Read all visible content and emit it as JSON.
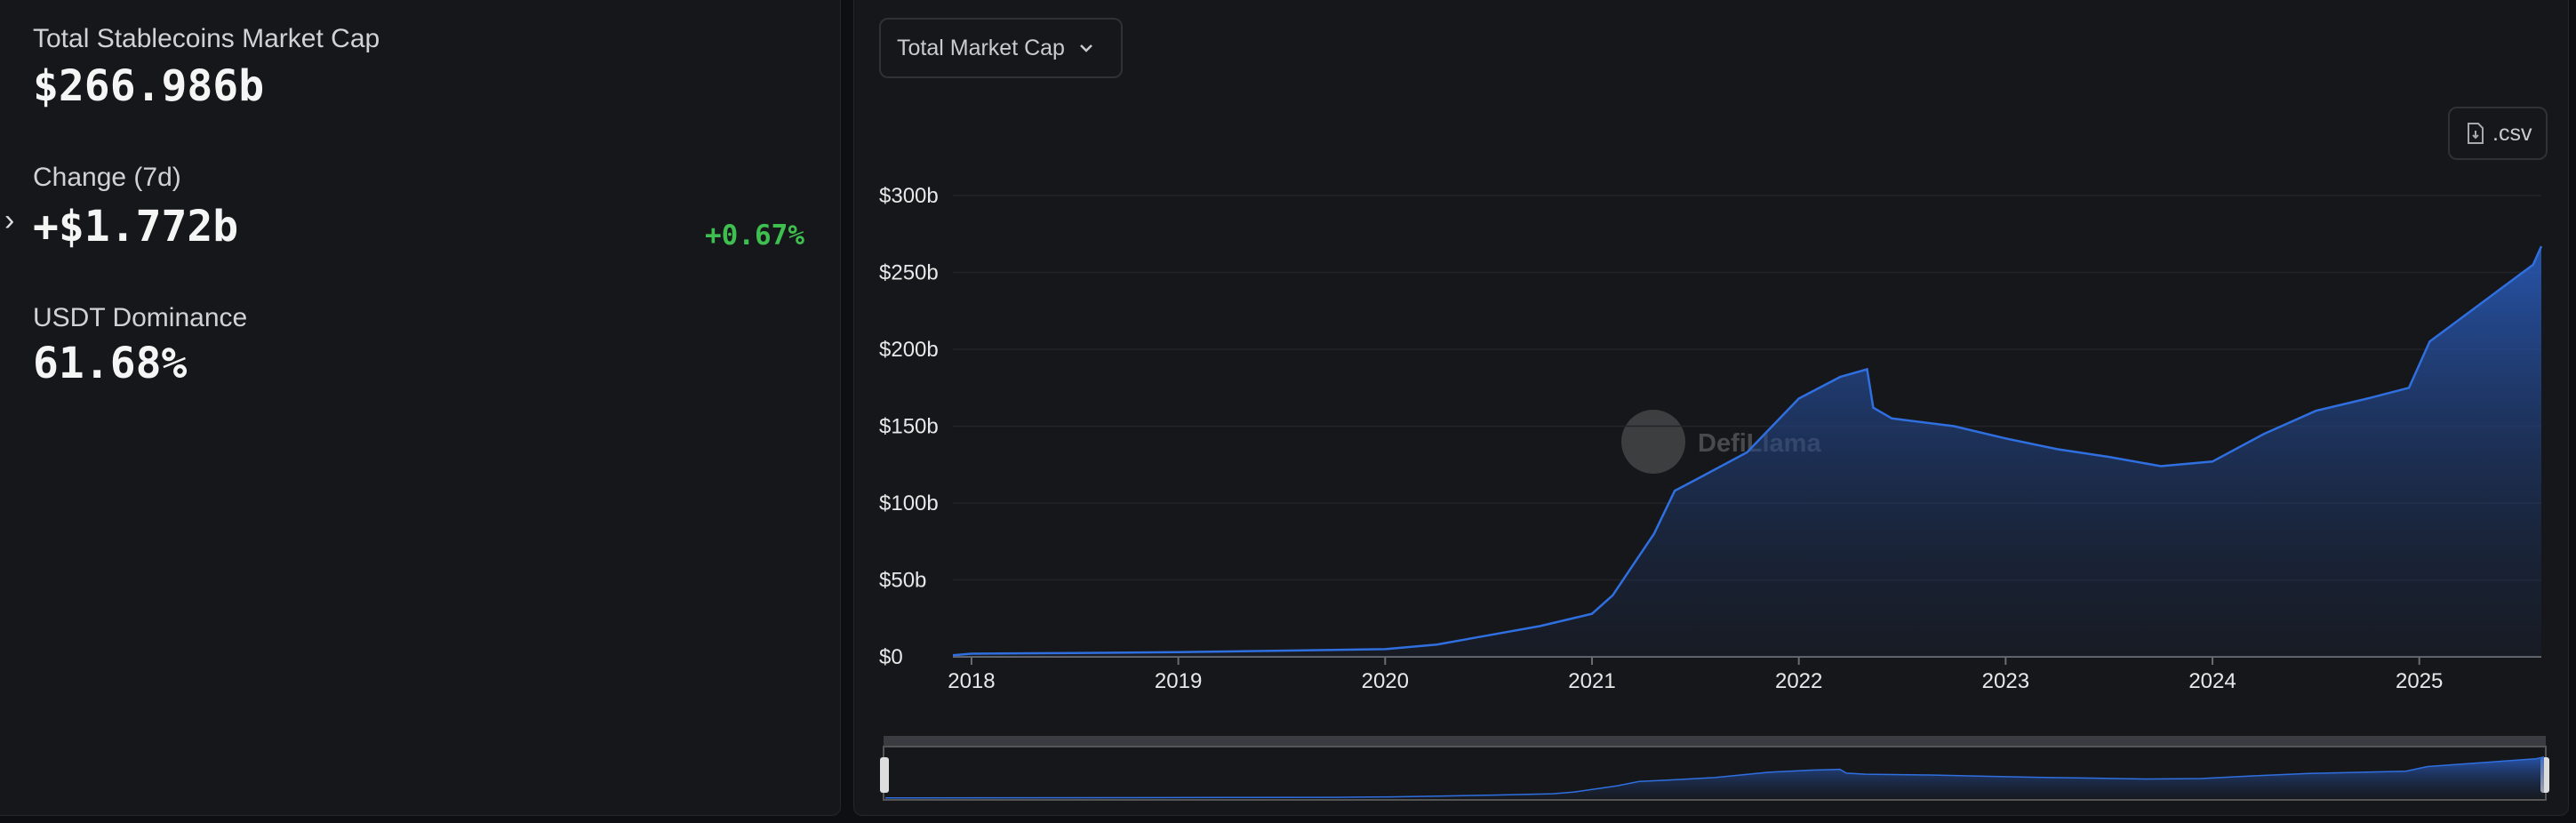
{
  "stats": [
    {
      "label": "Total Stablecoins Market Cap",
      "value": "$266.986b"
    },
    {
      "label": "Change (7d)",
      "value": "+$1.772b",
      "change": "+0.67%"
    },
    {
      "label": "USDT Dominance",
      "value": "61.68%"
    }
  ],
  "controls": {
    "dropdown": "Total Market Cap",
    "download": ".csv"
  },
  "watermark": "DefiLlama",
  "chart_data": {
    "type": "area",
    "x": [
      2017.91,
      2018.0,
      2018.5,
      2019.0,
      2019.5,
      2020.0,
      2020.25,
      2020.5,
      2020.75,
      2021.0,
      2021.1,
      2021.2,
      2021.3,
      2021.4,
      2021.5,
      2021.75,
      2022.0,
      2022.2,
      2022.33,
      2022.36,
      2022.45,
      2022.75,
      2023.0,
      2023.25,
      2023.5,
      2023.75,
      2024.0,
      2024.25,
      2024.5,
      2024.75,
      2024.95,
      2025.05,
      2025.25,
      2025.4,
      2025.55,
      2025.59
    ],
    "values": [
      1,
      2,
      2.5,
      3,
      4,
      5,
      8,
      14,
      20,
      28,
      40,
      60,
      80,
      108,
      115,
      133,
      168,
      182,
      187,
      162,
      155,
      150,
      142,
      135,
      130,
      124,
      127,
      145,
      160,
      168,
      175,
      205,
      225,
      240,
      255,
      267
    ],
    "color": "#2f6fe0",
    "xlim": [
      2017.91,
      2025.59
    ],
    "xticks": [
      2018,
      2019,
      2020,
      2021,
      2022,
      2023,
      2024,
      2025
    ],
    "ylim": [
      0,
      300
    ],
    "yticks": [
      {
        "value": 0,
        "label": "$0"
      },
      {
        "value": 50,
        "label": "$50b"
      },
      {
        "value": 100,
        "label": "$100b"
      },
      {
        "value": 150,
        "label": "$150b"
      },
      {
        "value": 200,
        "label": "$200b"
      },
      {
        "value": 250,
        "label": "$250b"
      },
      {
        "value": 300,
        "label": "$300b"
      }
    ],
    "grid": true
  }
}
